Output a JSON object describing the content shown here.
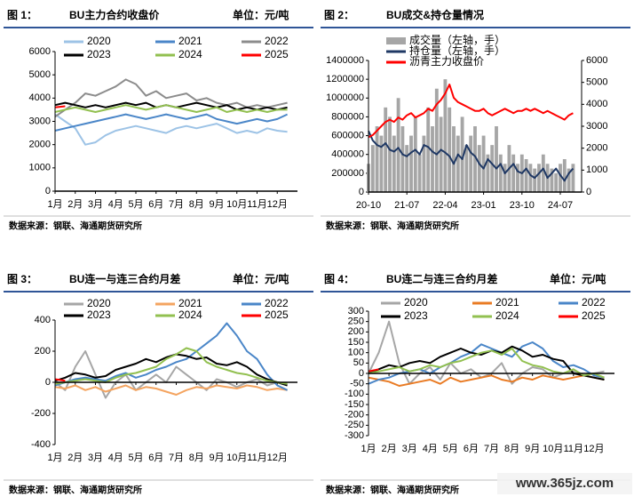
{
  "watermark": "www.365jz.com",
  "chart_data": [
    {
      "type": "line",
      "figure": "图 1：",
      "title": "BU主力合约收盘价",
      "unit": "单位：元/吨",
      "source": "数据来源：钢联、海通期货研究所",
      "x": [
        1,
        1.5,
        2,
        2.5,
        3,
        3.5,
        4,
        4.5,
        5,
        5.5,
        6,
        6.5,
        7,
        7.5,
        8,
        8.5,
        9,
        9.5,
        10,
        10.5,
        11,
        11.5,
        12,
        12.5
      ],
      "xlim": [
        1,
        13
      ],
      "xticks": [
        {
          "value": 1,
          "label": "1月"
        },
        {
          "value": 2,
          "label": "2月"
        },
        {
          "value": 3,
          "label": "3月"
        },
        {
          "value": 4,
          "label": "4月"
        },
        {
          "value": 5,
          "label": "5月"
        },
        {
          "value": 6,
          "label": "6月"
        },
        {
          "value": 7,
          "label": "7月"
        },
        {
          "value": 8,
          "label": "8月"
        },
        {
          "value": 9,
          "label": "9月"
        },
        {
          "value": 10,
          "label": "10月"
        },
        {
          "value": 11,
          "label": "11月"
        },
        {
          "value": 12,
          "label": "12月"
        }
      ],
      "ylim": [
        0,
        6000
      ],
      "yticks": [
        0,
        1000,
        2000,
        3000,
        4000,
        5000,
        6000
      ],
      "series": [
        {
          "name": "2020",
          "color": "#9dc3e6",
          "values": [
            3300,
            3000,
            2700,
            2000,
            2100,
            2400,
            2600,
            2700,
            2800,
            2700,
            2600,
            2500,
            2700,
            2800,
            2700,
            2800,
            2900,
            2700,
            2500,
            2600,
            2500,
            2700,
            2600,
            2550
          ]
        },
        {
          "name": "2021",
          "color": "#4a86c8",
          "values": [
            2600,
            2700,
            2800,
            2900,
            3000,
            3100,
            3200,
            3300,
            3200,
            3100,
            3200,
            3300,
            3200,
            3100,
            3200,
            3300,
            3100,
            3000,
            2900,
            3000,
            3100,
            3000,
            3100,
            3300
          ]
        },
        {
          "name": "2022",
          "color": "#8c8c8c",
          "values": [
            3200,
            3500,
            3800,
            4200,
            4100,
            4300,
            4500,
            4800,
            4600,
            4100,
            4300,
            4000,
            4100,
            4200,
            3900,
            4000,
            3800,
            3700,
            3800,
            3600,
            3700,
            3600,
            3700,
            3800
          ]
        },
        {
          "name": "2023",
          "color": "#000000",
          "values": [
            3700,
            3800,
            3700,
            3600,
            3700,
            3600,
            3700,
            3800,
            3700,
            3800,
            3600,
            3700,
            3600,
            3700,
            3800,
            3700,
            3600,
            3700,
            3500,
            3600,
            3500,
            3600,
            3500,
            3600
          ]
        },
        {
          "name": "2024",
          "color": "#92c050",
          "values": [
            3400,
            3500,
            3600,
            3500,
            3400,
            3500,
            3600,
            3700,
            3600,
            3500,
            3600,
            3700,
            3600,
            3500,
            3400,
            3500,
            3600,
            3400,
            3500,
            3400,
            3500,
            3400,
            3500,
            3500
          ]
        },
        {
          "name": "2025",
          "color": "#ff0000",
          "values": [
            3600,
            3650,
            null,
            null,
            null,
            null,
            null,
            null,
            null,
            null,
            null,
            null,
            null,
            null,
            null,
            null,
            null,
            null,
            null,
            null,
            null,
            null,
            null,
            null
          ]
        }
      ]
    },
    {
      "type": "combo",
      "figure": "图 2：",
      "title": "BU成交&持仓量情况",
      "source": "数据来源：钢联、海通期货研究所",
      "x": [
        0,
        1,
        2,
        3,
        4,
        5,
        6,
        7,
        8,
        9,
        10,
        11,
        12,
        13,
        14,
        15,
        16,
        17,
        18,
        19,
        20,
        21,
        22,
        23,
        24,
        25,
        26,
        27,
        28,
        29,
        30,
        31,
        32,
        33,
        34,
        35,
        36,
        37,
        38,
        39,
        40,
        41,
        42,
        43,
        44,
        45,
        46,
        47,
        48
      ],
      "xlim": [
        0,
        50
      ],
      "xticks": [
        {
          "value": 0,
          "label": "20-10"
        },
        {
          "value": 9,
          "label": "21-07"
        },
        {
          "value": 18,
          "label": "22-04"
        },
        {
          "value": 27,
          "label": "23-01"
        },
        {
          "value": 36,
          "label": "23-10"
        },
        {
          "value": 45,
          "label": "24-07"
        }
      ],
      "ylim": [
        0,
        1400000
      ],
      "yticks": [
        0,
        200000,
        400000,
        600000,
        800000,
        1000000,
        1200000,
        1400000
      ],
      "y2lim": [
        0,
        6000
      ],
      "y2ticks": [
        0,
        1000,
        2000,
        3000,
        4000,
        5000,
        6000
      ],
      "series": [
        {
          "name": "成交量（左轴，手）",
          "color": "#a6a6a6",
          "type": "bar",
          "values": [
            300000,
            500000,
            700000,
            600000,
            900000,
            800000,
            600000,
            1000000,
            700000,
            500000,
            600000,
            800000,
            400000,
            600000,
            900000,
            700000,
            1100000,
            800000,
            1200000,
            900000,
            700000,
            600000,
            800000,
            500000,
            600000,
            700000,
            500000,
            600000,
            400000,
            500000,
            700000,
            400000,
            300000,
            500000,
            400000,
            300000,
            400000,
            350000,
            300000,
            250000,
            300000,
            400000,
            300000,
            250000,
            200000,
            300000,
            350000,
            250000,
            300000
          ]
        },
        {
          "name": "持仓量（左轴，手）",
          "color": "#1f3864",
          "type": "line",
          "values": [
            650000,
            550000,
            500000,
            480000,
            520000,
            450000,
            430000,
            470000,
            400000,
            380000,
            420000,
            450000,
            400000,
            500000,
            480000,
            430000,
            400000,
            450000,
            420000,
            380000,
            300000,
            400000,
            350000,
            500000,
            420000,
            380000,
            300000,
            250000,
            350000,
            300000,
            250000,
            300000,
            200000,
            250000,
            300000,
            220000,
            200000,
            250000,
            180000,
            150000,
            200000,
            250000,
            150000,
            200000,
            250000,
            180000,
            120000,
            200000,
            250000
          ]
        },
        {
          "name": "沥青主力收盘价",
          "color": "#ff0000",
          "type": "line",
          "axis": "y2",
          "values": [
            2500,
            2600,
            2800,
            3000,
            3200,
            3300,
            3200,
            3400,
            3300,
            3500,
            3600,
            3400,
            3500,
            3600,
            3800,
            3700,
            4000,
            4200,
            4500,
            4900,
            4300,
            4100,
            4000,
            3900,
            3800,
            3700,
            3700,
            3800,
            3600,
            3500,
            3600,
            3700,
            3800,
            3700,
            3600,
            3700,
            3700,
            3800,
            3700,
            3800,
            3700,
            3600,
            3700,
            3600,
            3500,
            3400,
            3300,
            3500,
            3600
          ]
        }
      ]
    },
    {
      "type": "line",
      "figure": "图 3：",
      "title": "BU连一与连三合约月差",
      "unit": "单位：元/吨",
      "source": "数据来源：钢联、海通期货研究所",
      "x": [
        1,
        1.5,
        2,
        2.5,
        3,
        3.5,
        4,
        4.5,
        5,
        5.5,
        6,
        6.5,
        7,
        7.5,
        8,
        8.5,
        9,
        9.5,
        10,
        10.5,
        11,
        11.5,
        12,
        12.5
      ],
      "xlim": [
        1,
        13
      ],
      "xticks": [
        {
          "value": 1,
          "label": "1月"
        },
        {
          "value": 2,
          "label": "2月"
        },
        {
          "value": 3,
          "label": "3月"
        },
        {
          "value": 4,
          "label": "4月"
        },
        {
          "value": 5,
          "label": "5月"
        },
        {
          "value": 6,
          "label": "6月"
        },
        {
          "value": 7,
          "label": "7月"
        },
        {
          "value": 8,
          "label": "8月"
        },
        {
          "value": 9,
          "label": "9月"
        },
        {
          "value": 10,
          "label": "10月"
        },
        {
          "value": 11,
          "label": "11月"
        },
        {
          "value": 12,
          "label": "12月"
        }
      ],
      "ylim": [
        -400,
        400
      ],
      "yticks": [
        -400,
        -200,
        0,
        200,
        400
      ],
      "series": [
        {
          "name": "2020",
          "color": "#a6a6a6",
          "values": [
            0,
            -50,
            100,
            200,
            50,
            -100,
            0,
            50,
            -50,
            0,
            50,
            0,
            100,
            50,
            0,
            -50,
            20,
            0,
            -30,
            0,
            20,
            -20,
            0,
            -10
          ]
        },
        {
          "name": "2021",
          "color": "#f4a460",
          "values": [
            -30,
            -40,
            -20,
            -50,
            -30,
            -60,
            -40,
            -20,
            -50,
            -30,
            -40,
            -60,
            -80,
            -50,
            -30,
            -40,
            -20,
            -30,
            -40,
            -20,
            -30,
            -50,
            -40,
            -50
          ]
        },
        {
          "name": "2022",
          "color": "#4a86c8",
          "values": [
            -20,
            0,
            20,
            30,
            20,
            10,
            40,
            60,
            30,
            50,
            80,
            100,
            130,
            150,
            200,
            250,
            300,
            380,
            300,
            200,
            150,
            50,
            -20,
            -50
          ]
        },
        {
          "name": "2023",
          "color": "#000000",
          "values": [
            10,
            30,
            60,
            50,
            30,
            40,
            80,
            100,
            120,
            150,
            130,
            160,
            180,
            170,
            150,
            160,
            120,
            110,
            130,
            100,
            50,
            20,
            0,
            -20
          ]
        },
        {
          "name": "2024",
          "color": "#92c050",
          "values": [
            -10,
            0,
            10,
            20,
            10,
            0,
            30,
            50,
            60,
            80,
            100,
            150,
            180,
            220,
            200,
            130,
            100,
            80,
            60,
            50,
            30,
            10,
            0,
            -10
          ]
        },
        {
          "name": "2025",
          "color": "#ff0000",
          "values": [
            20,
            10,
            null,
            null,
            null,
            null,
            null,
            null,
            null,
            null,
            null,
            null,
            null,
            null,
            null,
            null,
            null,
            null,
            null,
            null,
            null,
            null,
            null,
            null
          ]
        }
      ]
    },
    {
      "type": "line",
      "figure": "图 4：",
      "title": "BU连二与连三合约月差",
      "unit": "单位：元/吨",
      "source": "数据来源：钢联、海通期货研究所",
      "x": [
        1,
        1.5,
        2,
        2.5,
        3,
        3.5,
        4,
        4.5,
        5,
        5.5,
        6,
        6.5,
        7,
        7.5,
        8,
        8.5,
        9,
        9.5,
        10,
        10.5,
        11,
        11.5,
        12,
        12.5
      ],
      "xlim": [
        1,
        13
      ],
      "xticks": [
        {
          "value": 1,
          "label": "1月"
        },
        {
          "value": 2,
          "label": "2月"
        },
        {
          "value": 3,
          "label": "3月"
        },
        {
          "value": 4,
          "label": "4月"
        },
        {
          "value": 5,
          "label": "5月"
        },
        {
          "value": 6,
          "label": "6月"
        },
        {
          "value": 7,
          "label": "7月"
        },
        {
          "value": 8,
          "label": "8月"
        },
        {
          "value": 9,
          "label": "9月"
        },
        {
          "value": 10,
          "label": "10月"
        },
        {
          "value": 11,
          "label": "11月"
        },
        {
          "value": 12,
          "label": "12月"
        }
      ],
      "ylim": [
        -300,
        300
      ],
      "yticks": [
        -300,
        -250,
        -200,
        -150,
        -100,
        -50,
        0,
        50,
        100,
        150,
        200,
        250,
        300
      ],
      "series": [
        {
          "name": "2020",
          "color": "#a6a6a6",
          "values": [
            0,
            100,
            250,
            50,
            -50,
            0,
            30,
            -30,
            50,
            0,
            20,
            -20,
            0,
            50,
            -50,
            0,
            30,
            20,
            -20,
            0,
            10,
            -10,
            0,
            10
          ]
        },
        {
          "name": "2021",
          "color": "#e97b24",
          "values": [
            -20,
            -30,
            -40,
            -60,
            -50,
            -40,
            -30,
            -50,
            -20,
            -40,
            -30,
            -20,
            -10,
            -30,
            -40,
            -20,
            -30,
            -10,
            -20,
            -30,
            -20,
            -10,
            -20,
            -30
          ]
        },
        {
          "name": "2022",
          "color": "#4a86c8",
          "values": [
            -50,
            -30,
            -20,
            0,
            10,
            20,
            0,
            30,
            50,
            80,
            100,
            140,
            120,
            100,
            80,
            130,
            150,
            120,
            60,
            30,
            40,
            20,
            -10,
            -20
          ]
        },
        {
          "name": "2023",
          "color": "#000000",
          "values": [
            0,
            20,
            40,
            30,
            50,
            60,
            50,
            80,
            100,
            120,
            100,
            90,
            110,
            100,
            130,
            110,
            80,
            90,
            70,
            60,
            0,
            -10,
            -20,
            -30
          ]
        },
        {
          "name": "2024",
          "color": "#92c050",
          "values": [
            0,
            10,
            20,
            30,
            10,
            20,
            40,
            30,
            50,
            60,
            80,
            100,
            110,
            90,
            120,
            60,
            40,
            30,
            10,
            0,
            20,
            -10,
            0,
            -20
          ]
        },
        {
          "name": "2025",
          "color": "#ff0000",
          "values": [
            10,
            20,
            null,
            null,
            null,
            null,
            null,
            null,
            null,
            null,
            null,
            null,
            null,
            null,
            null,
            null,
            null,
            null,
            null,
            null,
            null,
            null,
            null,
            null
          ]
        }
      ]
    }
  ]
}
